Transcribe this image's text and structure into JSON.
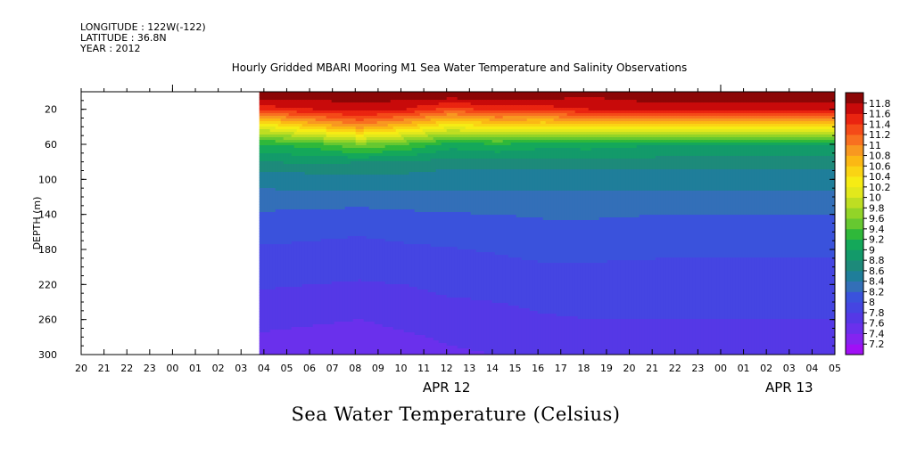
{
  "header": {
    "longitude": "LONGITUDE : 122W(-122)",
    "latitude": "LATITUDE : 36.8N",
    "year": "YEAR : 2012"
  },
  "footer_title": "Sea Water Temperature (Celsius)",
  "chart_data": {
    "type": "heatmap",
    "title": "Hourly Gridded MBARI Mooring M1 Sea Water Temperature and Salinity Observations",
    "ylabel": "DEPTH (m)",
    "ylim": [
      300,
      0
    ],
    "y_ticks": [
      20,
      60,
      100,
      140,
      180,
      220,
      260,
      300
    ],
    "x_tick_labels": [
      "20",
      "21",
      "22",
      "23",
      "00",
      "01",
      "02",
      "03",
      "04",
      "05",
      "06",
      "07",
      "08",
      "09",
      "10",
      "11",
      "12",
      "13",
      "14",
      "15",
      "16",
      "17",
      "18",
      "19",
      "20",
      "21",
      "22",
      "23",
      "00",
      "01",
      "02",
      "03",
      "04",
      "05"
    ],
    "date_labels": [
      {
        "label": "APR 12",
        "tick_index": 16
      },
      {
        "label": "APR 13",
        "tick_index": 31
      }
    ],
    "data_start_tick_index": 7.8,
    "colorbar": {
      "levels": [
        7.2,
        7.4,
        7.6,
        7.8,
        8,
        8.2,
        8.4,
        8.6,
        8.8,
        9,
        9.2,
        9.4,
        9.6,
        9.8,
        10,
        10.2,
        10.4,
        10.6,
        10.8,
        11,
        11.2,
        11.4,
        11.6,
        11.8
      ],
      "colors": [
        "#a010f5",
        "#8424f0",
        "#6a30ec",
        "#5538e6",
        "#4545e2",
        "#3a52dc",
        "#336fb8",
        "#1f7e9a",
        "#1d8a7a",
        "#139a6a",
        "#14a85a",
        "#2fb83a",
        "#66c830",
        "#92d428",
        "#bede22",
        "#e2e81c",
        "#f6ec14",
        "#fad414",
        "#fbb814",
        "#f89820",
        "#f87020",
        "#f44a18",
        "#ea2410",
        "#c80a0a",
        "#8c0606"
      ]
    },
    "profile_depths": [
      5,
      20,
      40,
      60,
      80,
      100,
      120,
      140,
      160,
      180,
      200,
      220,
      240,
      260,
      280,
      300
    ],
    "profile_hours": [
      7.8,
      10,
      12,
      14,
      16,
      18,
      20,
      22,
      24,
      26,
      28,
      30,
      33.4
    ],
    "temperature_profiles": [
      [
        11.7,
        11.2,
        10.2,
        9.0,
        8.7,
        8.4,
        8.35,
        8.15,
        8.05,
        7.95,
        7.88,
        7.78,
        7.68,
        7.52,
        7.38,
        7.3
      ],
      [
        11.6,
        10.9,
        10.0,
        9.0,
        8.65,
        8.4,
        8.35,
        8.15,
        8.05,
        7.98,
        7.9,
        7.8,
        7.72,
        7.65,
        7.56,
        7.45
      ],
      [
        11.7,
        11.1,
        9.8,
        8.9,
        8.62,
        8.42,
        8.35,
        8.14,
        8.04,
        7.96,
        7.9,
        7.8,
        7.72,
        7.63,
        7.58,
        7.52
      ],
      [
        11.8,
        11.3,
        10.0,
        9.1,
        8.7,
        8.42,
        8.35,
        8.15,
        8.05,
        7.98,
        7.9,
        7.82,
        7.75,
        7.66,
        7.6,
        7.55
      ],
      [
        11.9,
        11.5,
        10.2,
        9.2,
        8.8,
        8.45,
        8.36,
        8.16,
        8.06,
        7.98,
        7.9,
        7.82,
        7.74,
        7.64,
        7.58,
        7.54
      ],
      [
        11.9,
        11.6,
        10.6,
        9.3,
        8.85,
        8.48,
        8.35,
        8.14,
        8.04,
        7.96,
        7.88,
        7.8,
        7.72,
        7.62,
        7.56,
        7.52
      ],
      [
        11.9,
        11.7,
        10.9,
        9.6,
        8.8,
        8.55,
        8.32,
        8.12,
        8.02,
        7.94,
        7.86,
        7.78,
        7.7,
        7.6,
        7.54,
        7.5
      ],
      [
        11.9,
        11.6,
        10.6,
        9.4,
        8.8,
        8.5,
        8.36,
        8.15,
        8.05,
        7.97,
        7.9,
        7.8,
        7.74,
        7.64,
        7.58,
        7.55
      ],
      [
        11.9,
        11.3,
        10.2,
        9.1,
        8.7,
        8.45,
        8.38,
        8.18,
        8.08,
        7.99,
        7.92,
        7.85,
        7.78,
        7.7,
        7.62,
        7.58
      ],
      [
        11.9,
        11.5,
        10.4,
        9.2,
        8.75,
        8.45,
        8.38,
        8.2,
        8.1,
        8.02,
        7.94,
        7.86,
        7.8,
        7.72,
        7.64,
        7.6
      ],
      [
        11.9,
        11.5,
        10.3,
        9.1,
        8.7,
        8.45,
        8.38,
        8.22,
        8.14,
        8.06,
        7.98,
        7.9,
        7.84,
        7.78,
        7.7,
        7.65
      ],
      [
        11.8,
        11.6,
        10.4,
        9.1,
        8.75,
        8.45,
        8.38,
        8.22,
        8.15,
        8.06,
        7.98,
        7.9,
        7.84,
        7.8,
        7.72,
        7.66
      ],
      [
        12.0,
        11.6,
        10.4,
        9.0,
        8.72,
        8.45,
        8.38,
        8.2,
        8.12,
        8.04,
        7.96,
        7.88,
        7.82,
        7.8,
        7.74,
        7.7
      ]
    ]
  }
}
